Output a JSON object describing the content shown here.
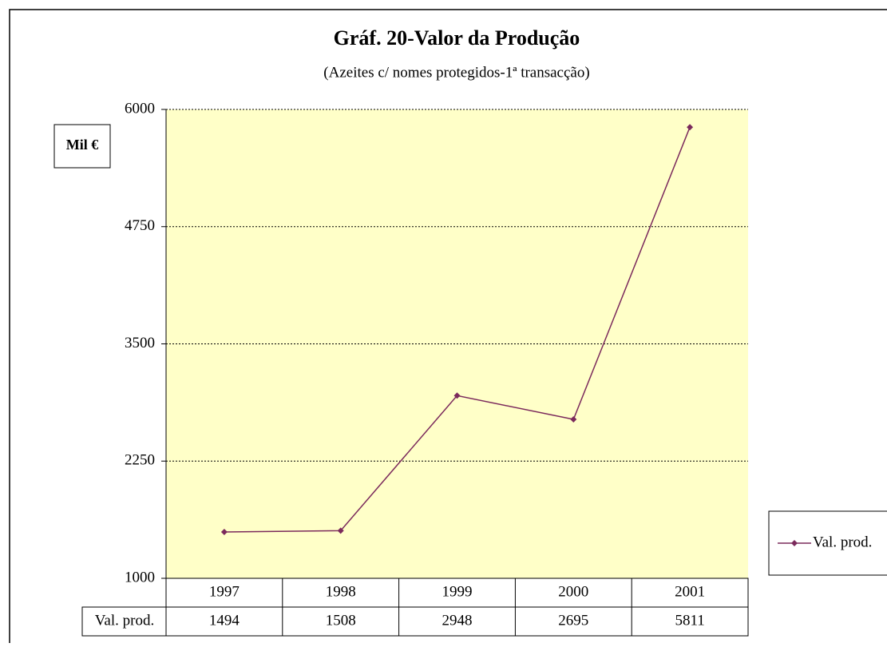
{
  "chart_data": {
    "type": "line",
    "title": "Gráf. 20-Valor da Produção",
    "subtitle": "(Azeites c/ nomes protegidos-1ª  transacção)",
    "y_label": "Mil €",
    "categories": [
      "1997",
      "1998",
      "1999",
      "2000",
      "2001"
    ],
    "series": [
      {
        "name": "Val. prod.",
        "color": "#7b2a5c",
        "values": [
          1494,
          1508,
          2948,
          2695,
          5811
        ]
      }
    ],
    "ylim": [
      1000,
      6000
    ],
    "yticks": [
      1000,
      2250,
      3500,
      4750,
      6000
    ],
    "grid": true,
    "legend": "right",
    "plot_background": "#ffffc8"
  }
}
